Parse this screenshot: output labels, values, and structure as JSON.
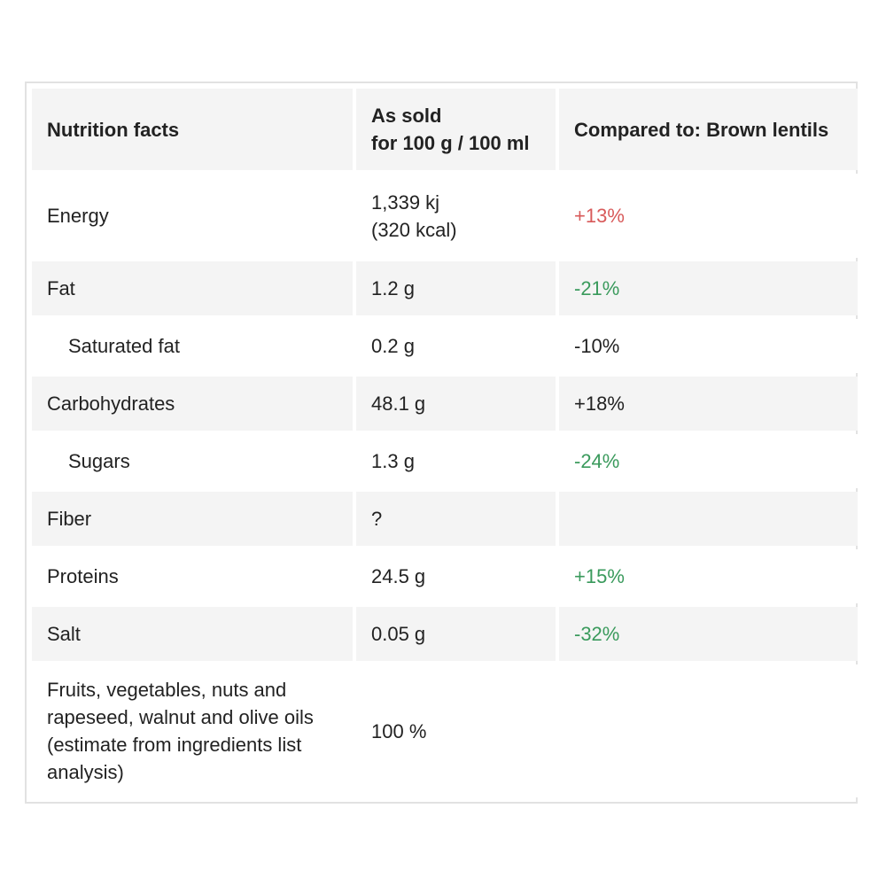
{
  "table": {
    "headers": {
      "name": "Nutrition facts",
      "as_sold_line1": "As sold",
      "as_sold_line2": "for 100 g / 100 ml",
      "compared": "Compared to: Brown lentils"
    },
    "rows": [
      {
        "name": "Energy",
        "value_line1": "1,339 kj",
        "value_line2": "(320 kcal)",
        "compare": "+13%",
        "compare_color": "#d85a5a"
      },
      {
        "name": "Fat",
        "value": "1.2 g",
        "compare": "-21%",
        "compare_color": "#3a9a5c"
      },
      {
        "name": "Saturated fat",
        "value": "0.2 g",
        "compare": "-10%",
        "compare_color": "#222222"
      },
      {
        "name": "Carbohydrates",
        "value": "48.1 g",
        "compare": "+18%",
        "compare_color": "#222222"
      },
      {
        "name": "Sugars",
        "value": "1.3 g",
        "compare": "-24%",
        "compare_color": "#3a9a5c"
      },
      {
        "name": "Fiber",
        "value": "?",
        "compare": "",
        "compare_color": "#222222"
      },
      {
        "name": "Proteins",
        "value": "24.5 g",
        "compare": "+15%",
        "compare_color": "#3a9a5c"
      },
      {
        "name": "Salt",
        "value": "0.05 g",
        "compare": "-32%",
        "compare_color": "#3a9a5c"
      },
      {
        "name": "Fruits, vegetables, nuts and rapeseed, walnut and olive oils (estimate from ingredients list analysis)",
        "value": "100 %",
        "compare": "",
        "compare_color": "#222222"
      }
    ]
  }
}
